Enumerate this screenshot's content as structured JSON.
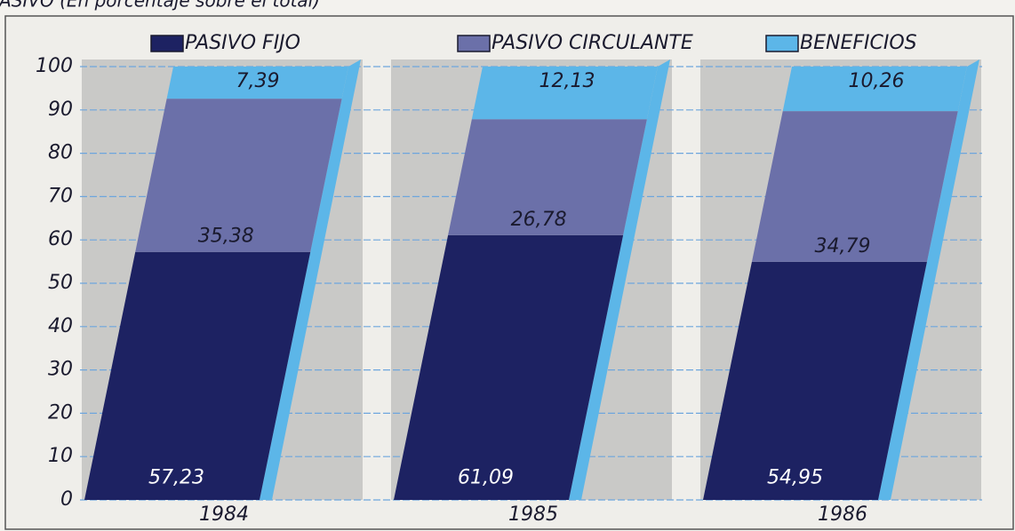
{
  "chart_data": {
    "type": "bar",
    "stacked": true,
    "title": "PASIVO (En porcentaje sobre el total)",
    "categories": [
      "1984",
      "1985",
      "1986"
    ],
    "series": [
      {
        "name": "PASIVO FIJO",
        "color": "#1d2262",
        "values": [
          57.23,
          61.09,
          54.95
        ],
        "value_labels": [
          "57,23",
          "61,09",
          "54,95"
        ]
      },
      {
        "name": "PASIVO CIRCULANTE",
        "color": "#6b70a9",
        "values": [
          35.38,
          26.78,
          34.79
        ],
        "value_labels": [
          "35,38",
          "26,78",
          "34,79"
        ]
      },
      {
        "name": "BENEFICIOS",
        "color": "#5cb6e8",
        "values": [
          7.39,
          12.13,
          10.26
        ],
        "value_labels": [
          "7,39",
          "12,13",
          "10,26"
        ]
      }
    ],
    "ylim": [
      0,
      100
    ],
    "yticks": [
      0,
      10,
      20,
      30,
      40,
      50,
      60,
      70,
      80,
      90,
      100
    ],
    "grid": true
  }
}
